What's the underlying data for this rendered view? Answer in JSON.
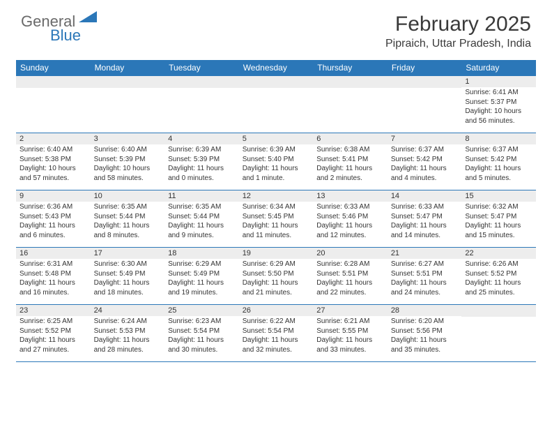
{
  "logo": {
    "general": "General",
    "blue": "Blue"
  },
  "title": "February 2025",
  "location": "Pipraich, Uttar Pradesh, India",
  "header_bg": "#2b77b8",
  "divider_color": "#2b77b8",
  "daynum_bg": "#ededed",
  "day_headers": [
    "Sunday",
    "Monday",
    "Tuesday",
    "Wednesday",
    "Thursday",
    "Friday",
    "Saturday"
  ],
  "weeks": [
    [
      null,
      null,
      null,
      null,
      null,
      null,
      {
        "n": "1",
        "sr": "6:41 AM",
        "ss": "5:37 PM",
        "dl": "10 hours and 56 minutes."
      }
    ],
    [
      {
        "n": "2",
        "sr": "6:40 AM",
        "ss": "5:38 PM",
        "dl": "10 hours and 57 minutes."
      },
      {
        "n": "3",
        "sr": "6:40 AM",
        "ss": "5:39 PM",
        "dl": "10 hours and 58 minutes."
      },
      {
        "n": "4",
        "sr": "6:39 AM",
        "ss": "5:39 PM",
        "dl": "11 hours and 0 minutes."
      },
      {
        "n": "5",
        "sr": "6:39 AM",
        "ss": "5:40 PM",
        "dl": "11 hours and 1 minute."
      },
      {
        "n": "6",
        "sr": "6:38 AM",
        "ss": "5:41 PM",
        "dl": "11 hours and 2 minutes."
      },
      {
        "n": "7",
        "sr": "6:37 AM",
        "ss": "5:42 PM",
        "dl": "11 hours and 4 minutes."
      },
      {
        "n": "8",
        "sr": "6:37 AM",
        "ss": "5:42 PM",
        "dl": "11 hours and 5 minutes."
      }
    ],
    [
      {
        "n": "9",
        "sr": "6:36 AM",
        "ss": "5:43 PM",
        "dl": "11 hours and 6 minutes."
      },
      {
        "n": "10",
        "sr": "6:35 AM",
        "ss": "5:44 PM",
        "dl": "11 hours and 8 minutes."
      },
      {
        "n": "11",
        "sr": "6:35 AM",
        "ss": "5:44 PM",
        "dl": "11 hours and 9 minutes."
      },
      {
        "n": "12",
        "sr": "6:34 AM",
        "ss": "5:45 PM",
        "dl": "11 hours and 11 minutes."
      },
      {
        "n": "13",
        "sr": "6:33 AM",
        "ss": "5:46 PM",
        "dl": "11 hours and 12 minutes."
      },
      {
        "n": "14",
        "sr": "6:33 AM",
        "ss": "5:47 PM",
        "dl": "11 hours and 14 minutes."
      },
      {
        "n": "15",
        "sr": "6:32 AM",
        "ss": "5:47 PM",
        "dl": "11 hours and 15 minutes."
      }
    ],
    [
      {
        "n": "16",
        "sr": "6:31 AM",
        "ss": "5:48 PM",
        "dl": "11 hours and 16 minutes."
      },
      {
        "n": "17",
        "sr": "6:30 AM",
        "ss": "5:49 PM",
        "dl": "11 hours and 18 minutes."
      },
      {
        "n": "18",
        "sr": "6:29 AM",
        "ss": "5:49 PM",
        "dl": "11 hours and 19 minutes."
      },
      {
        "n": "19",
        "sr": "6:29 AM",
        "ss": "5:50 PM",
        "dl": "11 hours and 21 minutes."
      },
      {
        "n": "20",
        "sr": "6:28 AM",
        "ss": "5:51 PM",
        "dl": "11 hours and 22 minutes."
      },
      {
        "n": "21",
        "sr": "6:27 AM",
        "ss": "5:51 PM",
        "dl": "11 hours and 24 minutes."
      },
      {
        "n": "22",
        "sr": "6:26 AM",
        "ss": "5:52 PM",
        "dl": "11 hours and 25 minutes."
      }
    ],
    [
      {
        "n": "23",
        "sr": "6:25 AM",
        "ss": "5:52 PM",
        "dl": "11 hours and 27 minutes."
      },
      {
        "n": "24",
        "sr": "6:24 AM",
        "ss": "5:53 PM",
        "dl": "11 hours and 28 minutes."
      },
      {
        "n": "25",
        "sr": "6:23 AM",
        "ss": "5:54 PM",
        "dl": "11 hours and 30 minutes."
      },
      {
        "n": "26",
        "sr": "6:22 AM",
        "ss": "5:54 PM",
        "dl": "11 hours and 32 minutes."
      },
      {
        "n": "27",
        "sr": "6:21 AM",
        "ss": "5:55 PM",
        "dl": "11 hours and 33 minutes."
      },
      {
        "n": "28",
        "sr": "6:20 AM",
        "ss": "5:56 PM",
        "dl": "11 hours and 35 minutes."
      },
      null
    ]
  ],
  "labels": {
    "sunrise": "Sunrise:",
    "sunset": "Sunset:",
    "daylight": "Daylight:"
  }
}
